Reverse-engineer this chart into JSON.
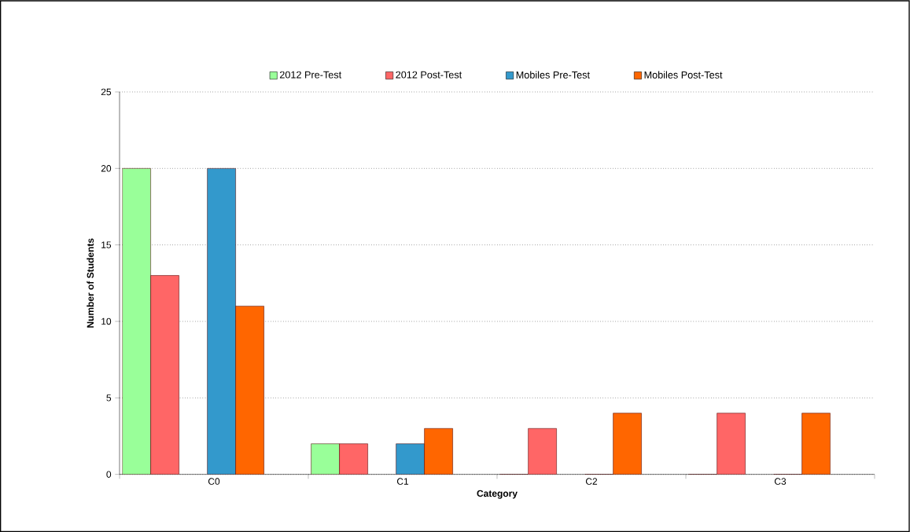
{
  "chart_data": {
    "type": "bar",
    "xlabel": "Category",
    "ylabel": "Number of Students",
    "categories": [
      "C0",
      "C1",
      "C2",
      "C3"
    ],
    "series": [
      {
        "name": "2012 Pre-Test",
        "color": "#99ff99",
        "values": [
          20,
          2,
          0,
          0
        ]
      },
      {
        "name": "2012 Post-Test",
        "color": "#ff6666",
        "values": [
          13,
          2,
          3,
          4
        ]
      },
      {
        "name": "Mobiles Pre-Test",
        "color": "#3399cc",
        "values": [
          20,
          2,
          0,
          0
        ]
      },
      {
        "name": "Mobiles Post-Test",
        "color": "#ff6600",
        "values": [
          11,
          3,
          4,
          4
        ]
      }
    ],
    "ylim": [
      0,
      25
    ],
    "yticks": [
      0,
      5,
      10,
      15,
      20,
      25
    ],
    "grid": "y",
    "legend": "top"
  }
}
